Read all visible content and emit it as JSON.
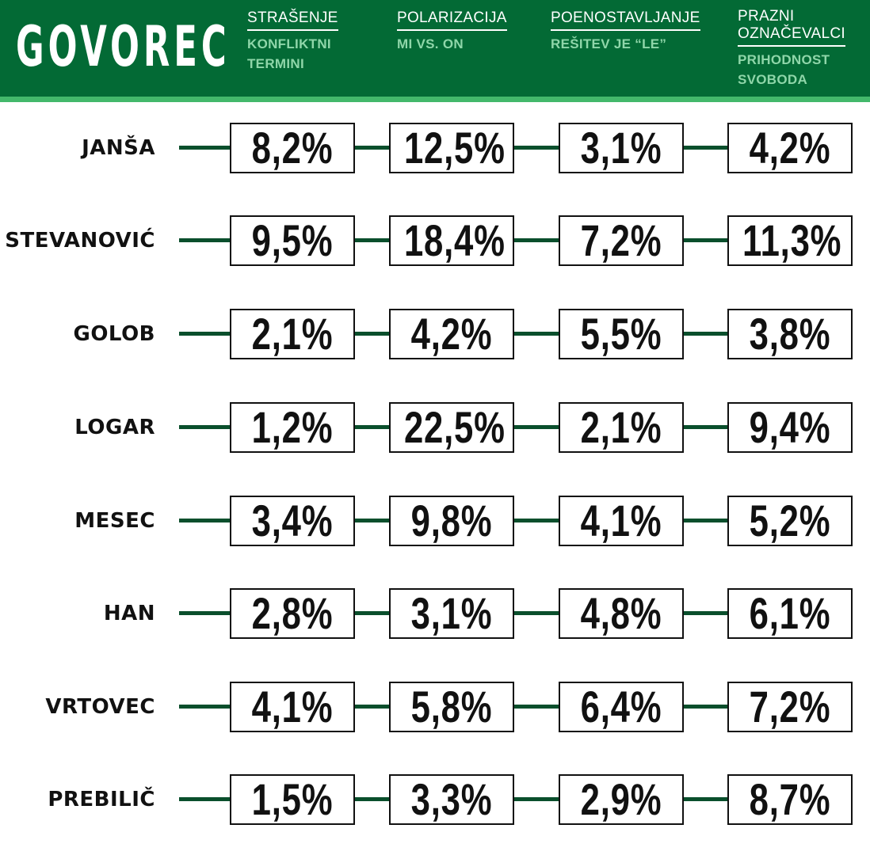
{
  "logo": "GOVOREC",
  "columns": [
    {
      "title": "STRAŠENJE",
      "subtitle": "KONFLIKTNI\nTERMINI"
    },
    {
      "title": "POLARIZACIJA",
      "subtitle": "MI VS. ON"
    },
    {
      "title": "POENOSTAVLJANJE",
      "subtitle": "REŠITEV JE “LE”"
    },
    {
      "title": "PRAZNI\nOZNAČEVALCI",
      "subtitle": "PRIHODNOST\nSVOBODA"
    }
  ],
  "colors": {
    "header": "#036a35",
    "strip": "#43b86b",
    "subtitle": "#8fd6a9",
    "connector": "#0a4f2c"
  },
  "chart_data": {
    "type": "table",
    "row_labels": [
      "JANŠA",
      "STEVANOVIĆ",
      "GOLOB",
      "LOGAR",
      "MESEC",
      "HAN",
      "VRTOVEC",
      "PREBILIČ"
    ],
    "column_labels": [
      "STRAŠENJE",
      "POLARIZACIJA",
      "POENOSTAVLJANJE",
      "PRAZNI OZNAČEVALCI"
    ],
    "values": [
      [
        "8,2%",
        "12,5%",
        "3,1%",
        "4,2%"
      ],
      [
        "9,5%",
        "18,4%",
        "7,2%",
        "11,3%"
      ],
      [
        "2,1%",
        "4,2%",
        "5,5%",
        "3,8%"
      ],
      [
        "1,2%",
        "22,5%",
        "2,1%",
        "9,4%"
      ],
      [
        "3,4%",
        "9,8%",
        "4,1%",
        "5,2%"
      ],
      [
        "2,8%",
        "3,1%",
        "4,8%",
        "6,1%"
      ],
      [
        "4,1%",
        "5,8%",
        "6,4%",
        "7,2%"
      ],
      [
        "1,5%",
        "3,3%",
        "2,9%",
        "8,7%"
      ]
    ]
  }
}
